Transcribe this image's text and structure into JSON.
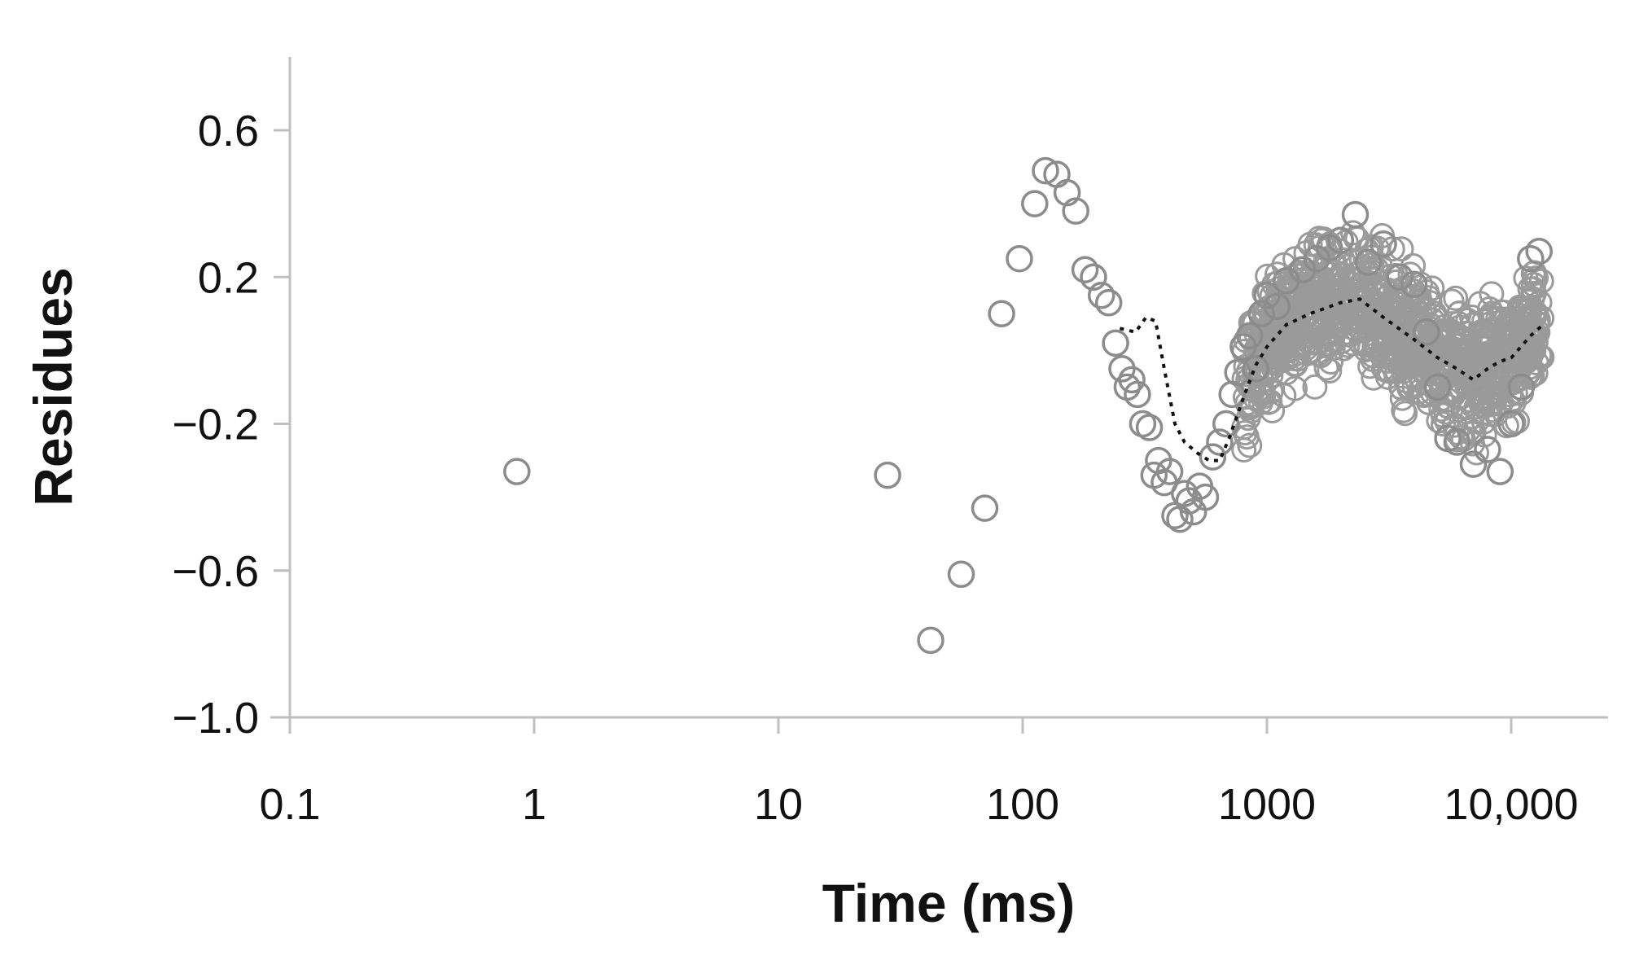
{
  "chart_data": {
    "type": "scatter",
    "xlabel": "Time (ms)",
    "ylabel": "Residues",
    "xscale": "log",
    "xlim": [
      0.1,
      25000
    ],
    "ylim": [
      -1.0,
      0.8
    ],
    "x_ticks": [
      {
        "value": 0.1,
        "label": "0.1"
      },
      {
        "value": 1,
        "label": "1"
      },
      {
        "value": 10,
        "label": "10"
      },
      {
        "value": 100,
        "label": "100"
      },
      {
        "value": 1000,
        "label": "1000"
      },
      {
        "value": 10000,
        "label": "10,000"
      }
    ],
    "y_ticks": [
      {
        "value": 0.6,
        "label": "0.6"
      },
      {
        "value": 0.2,
        "label": "0.2"
      },
      {
        "value": -0.2,
        "label": "−0.2"
      },
      {
        "value": -0.6,
        "label": "−0.6"
      },
      {
        "value": -1.0,
        "label": "−1.0"
      }
    ],
    "grid": false,
    "legend": "none",
    "colors": {
      "points": "#8c8c8c",
      "fit_line": "#111111",
      "axis": "#bfbfbf"
    },
    "series": [
      {
        "style": "open-circles",
        "points": [
          [
            0.85,
            -0.33
          ],
          [
            28,
            -0.34
          ],
          [
            42,
            -0.79
          ],
          [
            56,
            -0.61
          ],
          [
            70,
            -0.43
          ],
          [
            82,
            0.1
          ],
          [
            97,
            0.25
          ],
          [
            112,
            0.4
          ],
          [
            124,
            0.49
          ],
          [
            138,
            0.48
          ],
          [
            152,
            0.43
          ],
          [
            165,
            0.38
          ],
          [
            180,
            0.22
          ],
          [
            195,
            0.2
          ],
          [
            210,
            0.15
          ],
          [
            225,
            0.13
          ],
          [
            240,
            0.02
          ],
          [
            255,
            -0.05
          ],
          [
            268,
            -0.1
          ],
          [
            280,
            -0.08
          ],
          [
            295,
            -0.12
          ],
          [
            310,
            -0.2
          ],
          [
            330,
            -0.21
          ],
          [
            345,
            -0.34
          ],
          [
            360,
            -0.3
          ],
          [
            380,
            -0.36
          ],
          [
            400,
            -0.33
          ],
          [
            420,
            -0.45
          ],
          [
            440,
            -0.46
          ],
          [
            460,
            -0.39
          ],
          [
            480,
            -0.41
          ],
          [
            500,
            -0.44
          ],
          [
            530,
            -0.37
          ],
          [
            560,
            -0.4
          ],
          [
            600,
            -0.29
          ],
          [
            640,
            -0.25
          ],
          [
            680,
            -0.2
          ],
          [
            720,
            -0.12
          ],
          [
            760,
            -0.06
          ],
          [
            800,
            0.01
          ],
          [
            850,
            0.04
          ],
          [
            900,
            -0.05
          ],
          [
            950,
            0.1
          ],
          [
            1000,
            0.15
          ],
          [
            1100,
            0.12
          ],
          [
            1200,
            0.19
          ],
          [
            1400,
            0.22
          ],
          [
            1600,
            0.25
          ],
          [
            1800,
            0.28
          ],
          [
            2000,
            0.3
          ],
          [
            2300,
            0.37
          ],
          [
            2600,
            0.24
          ],
          [
            3000,
            0.29
          ],
          [
            3500,
            0.2
          ],
          [
            4000,
            0.18
          ],
          [
            4500,
            0.05
          ],
          [
            5000,
            -0.1
          ],
          [
            5500,
            -0.24
          ],
          [
            6000,
            -0.25
          ],
          [
            7000,
            -0.31
          ],
          [
            8000,
            -0.27
          ],
          [
            9000,
            -0.33
          ],
          [
            10000,
            -0.2
          ],
          [
            11000,
            -0.1
          ],
          [
            12000,
            0.25
          ],
          [
            13000,
            0.27
          ]
        ]
      },
      {
        "style": "dotted-line",
        "points": [
          [
            250,
            0.06
          ],
          [
            290,
            0.05
          ],
          [
            320,
            0.09
          ],
          [
            350,
            0.08
          ],
          [
            380,
            -0.05
          ],
          [
            420,
            -0.2
          ],
          [
            460,
            -0.25
          ],
          [
            520,
            -0.28
          ],
          [
            580,
            -0.3
          ],
          [
            640,
            -0.3
          ],
          [
            700,
            -0.24
          ],
          [
            800,
            -0.13
          ],
          [
            900,
            -0.04
          ],
          [
            1000,
            0.01
          ],
          [
            1200,
            0.07
          ],
          [
            1500,
            0.1
          ],
          [
            2000,
            0.13
          ],
          [
            2400,
            0.14
          ],
          [
            3000,
            0.09
          ],
          [
            4000,
            0.03
          ],
          [
            5000,
            -0.02
          ],
          [
            6000,
            -0.05
          ],
          [
            7000,
            -0.08
          ],
          [
            8000,
            -0.05
          ],
          [
            9000,
            -0.03
          ],
          [
            10000,
            -0.02
          ],
          [
            12000,
            0.04
          ],
          [
            13500,
            0.07
          ]
        ]
      }
    ]
  }
}
